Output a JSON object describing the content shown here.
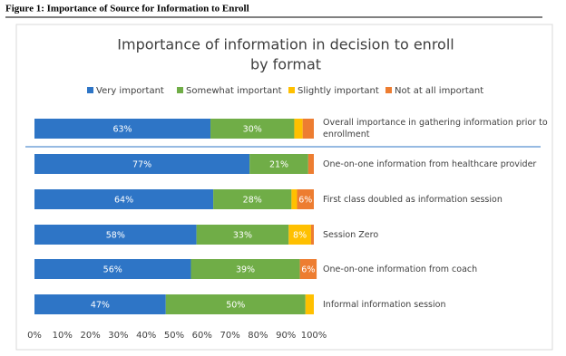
{
  "caption": "Figure 1: Importance of Source for Information to Enroll",
  "chart_data": {
    "type": "stacked-bar-horizontal",
    "title": "Importance of information in decision to enroll",
    "subtitle": "by format",
    "categories": [
      "Overall importance in gathering information prior to enrollment",
      "One-on-one information from healthcare provider",
      "First class doubled as information session",
      "Session Zero",
      "One-on-one information from coach",
      "Informal information session"
    ],
    "series": [
      {
        "name": "Very important",
        "color": "#2e75c6",
        "values": [
          63,
          77,
          64,
          58,
          56,
          47
        ],
        "value_labels": [
          "63%",
          "77%",
          "64%",
          "58%",
          "56%",
          "47%"
        ]
      },
      {
        "name": "Somewhat important",
        "color": "#70ad47",
        "values": [
          30,
          21,
          28,
          33,
          39,
          50
        ],
        "value_labels": [
          "30%",
          "21%",
          "28%",
          "33%",
          "39%",
          "50%"
        ]
      },
      {
        "name": "Slightly important",
        "color": "#ffc000",
        "values": [
          3,
          0,
          2,
          8,
          0,
          3
        ],
        "value_labels": [
          null,
          null,
          null,
          "8%",
          null,
          null
        ]
      },
      {
        "name": "Not at all important",
        "color": "#ed7d31",
        "values": [
          4,
          2,
          6,
          1,
          6,
          0
        ],
        "value_labels": [
          null,
          null,
          "6%",
          null,
          "6%",
          null
        ]
      }
    ],
    "xlim": [
      0,
      100
    ],
    "xticks": [
      {
        "value": 0,
        "label": "0%"
      },
      {
        "value": 10,
        "label": "10%"
      },
      {
        "value": 20,
        "label": "20%"
      },
      {
        "value": 30,
        "label": "30%"
      },
      {
        "value": 40,
        "label": "40%"
      },
      {
        "value": 50,
        "label": "50%"
      },
      {
        "value": 60,
        "label": "60%"
      },
      {
        "value": 70,
        "label": "70%"
      },
      {
        "value": 80,
        "label": "80%"
      },
      {
        "value": 90,
        "label": "90%"
      },
      {
        "value": 100,
        "label": "100%"
      }
    ],
    "legend": "top"
  }
}
